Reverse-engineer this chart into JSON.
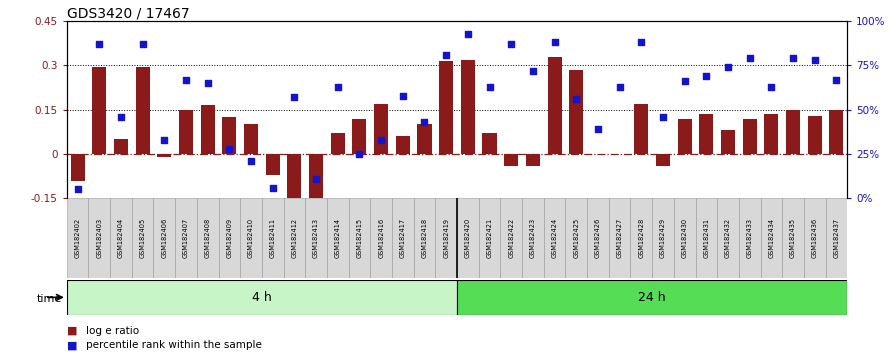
{
  "title": "GDS3420 / 17467",
  "samples": [
    "GSM182402",
    "GSM182403",
    "GSM182404",
    "GSM182405",
    "GSM182406",
    "GSM182407",
    "GSM182408",
    "GSM182409",
    "GSM182410",
    "GSM182411",
    "GSM182412",
    "GSM182413",
    "GSM182414",
    "GSM182415",
    "GSM182416",
    "GSM182417",
    "GSM182418",
    "GSM182419",
    "GSM182420",
    "GSM182421",
    "GSM182422",
    "GSM182423",
    "GSM182424",
    "GSM182425",
    "GSM182426",
    "GSM182427",
    "GSM182428",
    "GSM182429",
    "GSM182430",
    "GSM182431",
    "GSM182432",
    "GSM182433",
    "GSM182434",
    "GSM182435",
    "GSM182436",
    "GSM182437"
  ],
  "log_ratio": [
    -0.09,
    0.295,
    0.05,
    0.295,
    -0.01,
    0.15,
    0.165,
    0.125,
    0.1,
    -0.07,
    -0.165,
    -0.165,
    0.07,
    0.12,
    0.17,
    0.06,
    0.1,
    0.315,
    0.32,
    0.07,
    -0.04,
    -0.04,
    0.33,
    0.285,
    0.0,
    0.0,
    0.17,
    -0.04,
    0.12,
    0.135,
    0.08,
    0.12,
    0.135,
    0.15,
    0.13,
    0.15
  ],
  "percentile": [
    5,
    87,
    46,
    87,
    33,
    67,
    65,
    28,
    21,
    6,
    57,
    11,
    63,
    25,
    33,
    58,
    43,
    81,
    93,
    63,
    87,
    72,
    88,
    56,
    39,
    63,
    88,
    46,
    66,
    69,
    74,
    79,
    63,
    79,
    78,
    67
  ],
  "group1_count": 18,
  "group1_label": "4 h",
  "group2_label": "24 h",
  "bar_color": "#8B1A1A",
  "dot_color": "#1414CC",
  "group1_bg": "#C8F5C8",
  "group2_bg": "#55DD55",
  "ylim_left": [
    -0.15,
    0.45
  ],
  "ylim_right": [
    0,
    100
  ],
  "yticks_left": [
    -0.15,
    0.0,
    0.15,
    0.3,
    0.45
  ],
  "yticks_right": [
    0,
    25,
    50,
    75,
    100
  ],
  "right_ytick_labels": [
    "0%",
    "25%",
    "50%",
    "75%",
    "100%"
  ],
  "hlines": [
    0.15,
    0.3
  ],
  "left_ytick_labels": [
    "-0.15",
    "0",
    "0.15",
    "0.3",
    "0.45"
  ]
}
